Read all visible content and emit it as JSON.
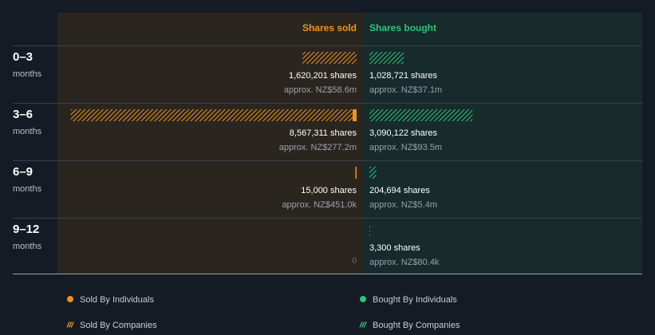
{
  "chart_data": {
    "type": "bar",
    "headers": {
      "sold": "Shares sold",
      "bought": "Shares bought"
    },
    "colors": {
      "sold": "#f0921e",
      "bought": "#2fc479",
      "sold_panel": "#2b2520",
      "bought_panel": "#172b2c",
      "background": "#151b24"
    },
    "x_max_shares": 8800000,
    "periods": [
      {
        "label": "0–3",
        "unit": "months",
        "sold": {
          "individuals": 0,
          "companies": 1620201,
          "shares_text": "1,620,201 shares",
          "approx_text": "approx. NZ$58.6m"
        },
        "bought": {
          "individuals": 0,
          "companies": 1028721,
          "shares_text": "1,028,721 shares",
          "approx_text": "approx. NZ$37.1m"
        }
      },
      {
        "label": "3–6",
        "unit": "months",
        "sold": {
          "individuals": 120000,
          "companies": 8447311,
          "shares_text": "8,567,311 shares",
          "approx_text": "approx. NZ$277.2m"
        },
        "bought": {
          "individuals": 0,
          "companies": 3090122,
          "shares_text": "3,090,122 shares",
          "approx_text": "approx. NZ$93.5m"
        }
      },
      {
        "label": "6–9",
        "unit": "months",
        "sold": {
          "individuals": 15000,
          "companies": 0,
          "shares_text": "15,000 shares",
          "approx_text": "approx. NZ$451.0k"
        },
        "bought": {
          "individuals": 0,
          "companies": 204694,
          "shares_text": "204,694 shares",
          "approx_text": "approx. NZ$5.4m"
        }
      },
      {
        "label": "9–12",
        "unit": "months",
        "sold": {
          "individuals": 0,
          "companies": 0,
          "zero_text": "0"
        },
        "bought": {
          "individuals": 0,
          "companies": 3300,
          "shares_text": "3,300 shares",
          "approx_text": "approx. NZ$80.4k"
        }
      }
    ],
    "legend": [
      {
        "label": "Sold By Individuals",
        "key": "sold",
        "style": "solid"
      },
      {
        "label": "Bought By Individuals",
        "key": "bought",
        "style": "solid"
      },
      {
        "label": "Sold By Companies",
        "key": "sold",
        "style": "hatched"
      },
      {
        "label": "Bought By Companies",
        "key": "bought",
        "style": "hatched"
      }
    ]
  }
}
